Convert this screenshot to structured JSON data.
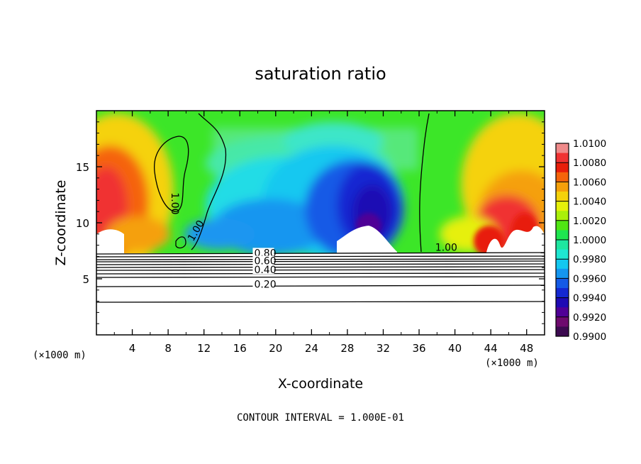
{
  "chart_data": {
    "type": "heatmap",
    "title": "saturation ratio",
    "xlabel": "X-coordinate",
    "ylabel": "Z-coordinate",
    "x_unit_left": "(×1000 m)",
    "x_unit_right": "(×1000 m)",
    "xlim": [
      0,
      50
    ],
    "ylim": [
      0,
      20
    ],
    "x_ticks": [
      {
        "v": 4,
        "label": "4"
      },
      {
        "v": 8,
        "label": "8"
      },
      {
        "v": 12,
        "label": "12"
      },
      {
        "v": 16,
        "label": "16"
      },
      {
        "v": 20,
        "label": "20"
      },
      {
        "v": 24,
        "label": "24"
      },
      {
        "v": 28,
        "label": "28"
      },
      {
        "v": 32,
        "label": "32"
      },
      {
        "v": 36,
        "label": "36"
      },
      {
        "v": 40,
        "label": "40"
      },
      {
        "v": 44,
        "label": "44"
      },
      {
        "v": 48,
        "label": "48"
      }
    ],
    "y_ticks": [
      {
        "v": 5,
        "label": "5"
      },
      {
        "v": 10,
        "label": "10"
      },
      {
        "v": 15,
        "label": "15"
      }
    ],
    "colorbar": {
      "labels": [
        "1.0100",
        "1.0080",
        "1.0060",
        "1.0040",
        "1.0020",
        "1.0000",
        "0.9980",
        "0.9960",
        "0.9940",
        "0.9920",
        "0.9900"
      ],
      "colors": [
        "#ef8a8a",
        "#f03232",
        "#e81e0a",
        "#f5640a",
        "#f5a00a",
        "#f5d20a",
        "#e6f00a",
        "#aaf00a",
        "#50e614",
        "#1ee650",
        "#1ee6a0",
        "#1ee6d2",
        "#14c8f0",
        "#1496f0",
        "#145ae6",
        "#1428d2",
        "#1e0ab4",
        "#500096",
        "#6e0a6e",
        "#3c0a50"
      ]
    },
    "contour_labels": [
      {
        "text": "1.00",
        "x": 8.4,
        "y": 12.7
      },
      {
        "text": "1.00",
        "x": 10.8,
        "y": 8.3
      },
      {
        "text": "1.00",
        "x": 37.8,
        "y": 7.5
      },
      {
        "text": "0.80",
        "x": 17.6,
        "y": 7.0
      },
      {
        "text": "0.60",
        "x": 17.6,
        "y": 6.3
      },
      {
        "text": "0.40",
        "x": 17.6,
        "y": 5.5
      },
      {
        "text": "0.20",
        "x": 17.6,
        "y": 4.2
      }
    ],
    "footer": "CONTOUR INTERVAL = 1.000E-01"
  }
}
